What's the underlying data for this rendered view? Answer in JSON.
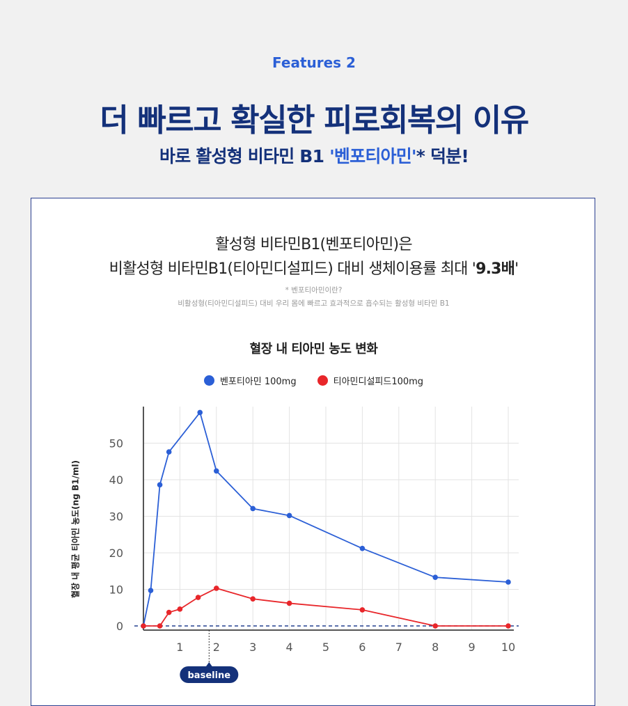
{
  "header": {
    "features_label": "Features 2",
    "title": "더 빠르고 확실한 피로회복의 이유",
    "subtitle_prefix": "바로 활성형 비타민 B1 ",
    "subtitle_accent": "'벤포티아민'",
    "subtitle_suffix": "* 덕분!"
  },
  "card": {
    "statement_line1": "활성형 비타민B1(벤포티아민)은",
    "statement_line2_prefix": "비활성형 비타민B1(티아민디설피드) 대비 생체이용률 최대 '",
    "statement_line2_highlight": "9.3배",
    "statement_line2_suffix": "'",
    "note_line1": "* 벤포티아민이란?",
    "note_line2": "비활성형(티아민디설피드) 대비 우리 몸에 빠르고 효과적으로 흡수되는 활성형 비타민 B1"
  },
  "colors": {
    "accent": "#2b5fd6",
    "navy": "#14317a",
    "series_blue": "#2b5fd6",
    "series_red": "#e8262a",
    "baseline_dash": "#24408f"
  },
  "chart_data": {
    "type": "line",
    "title": "혈장 내 티아민 농도 변화",
    "xlabel": "",
    "ylabel": "혈장 내 평균 티아민 농도(ng B1/ml)",
    "x_ticks": [
      1,
      2,
      3,
      4,
      5,
      6,
      7,
      8,
      9,
      10
    ],
    "y_ticks": [
      0,
      10,
      20,
      30,
      40,
      50
    ],
    "xlim": [
      0,
      10
    ],
    "ylim": [
      -2,
      58
    ],
    "grid": true,
    "legend": "top-center",
    "baseline_value": 0,
    "baseline_label": "baseline",
    "baseline_marker_x": 1.8,
    "series": [
      {
        "name": "벤포티아민 100mg",
        "color": "#2b5fd6",
        "points": [
          [
            0,
            0
          ],
          [
            0.2,
            9.7
          ],
          [
            0.45,
            38.6
          ],
          [
            0.7,
            47.6
          ],
          [
            1.55,
            58.4
          ],
          [
            2,
            42.4
          ],
          [
            3,
            32.1
          ],
          [
            4,
            30.2
          ],
          [
            6,
            21.2
          ],
          [
            8,
            13.3
          ],
          [
            10,
            12.0
          ]
        ]
      },
      {
        "name": "티아민디설피드100mg",
        "color": "#e8262a",
        "points": [
          [
            0,
            0
          ],
          [
            0.45,
            0
          ],
          [
            0.7,
            3.7
          ],
          [
            1,
            4.6
          ],
          [
            1.5,
            7.8
          ],
          [
            2,
            10.3
          ],
          [
            3,
            7.4
          ],
          [
            4,
            6.2
          ],
          [
            6,
            4.4
          ],
          [
            8,
            0
          ],
          [
            10,
            0
          ]
        ]
      }
    ]
  }
}
